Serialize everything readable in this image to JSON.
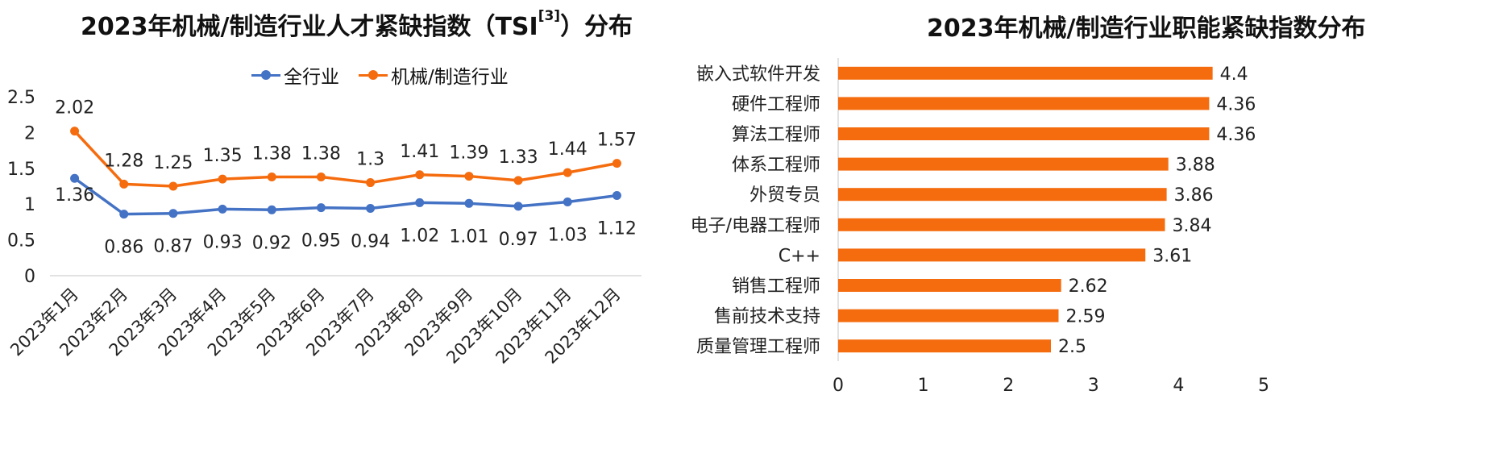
{
  "chart_data": [
    {
      "type": "line",
      "title": "2023年机械/制造行业人才紧缺指数（TSI",
      "title_sup": "[3]",
      "title_end": "）分布",
      "categories": [
        "2023年1月",
        "2023年2月",
        "2023年3月",
        "2023年4月",
        "2023年5月",
        "2023年6月",
        "2023年7月",
        "2023年8月",
        "2023年9月",
        "2023年10月",
        "2023年11月",
        "2023年12月"
      ],
      "y_ticks": [
        "0",
        "0.5",
        "1",
        "1.5",
        "2",
        "2.5"
      ],
      "ylim": [
        0,
        2.5
      ],
      "legend_position": "top",
      "series": [
        {
          "name": "全行业",
          "color": "#4472C4",
          "values": [
            1.36,
            0.86,
            0.87,
            0.93,
            0.92,
            0.95,
            0.94,
            1.02,
            1.01,
            0.97,
            1.03,
            1.12
          ],
          "labels": [
            "1.36",
            "0.86",
            "0.87",
            "0.93",
            "0.92",
            "0.95",
            "0.94",
            "1.02",
            "1.01",
            "0.97",
            "1.03",
            "1.12"
          ]
        },
        {
          "name": "机械/制造行业",
          "color": "#F56C0F",
          "values": [
            2.02,
            1.28,
            1.25,
            1.35,
            1.38,
            1.38,
            1.3,
            1.41,
            1.39,
            1.33,
            1.44,
            1.57
          ],
          "labels": [
            "2.02",
            "1.28",
            "1.25",
            "1.35",
            "1.38",
            "1.38",
            "1.3",
            "1.41",
            "1.39",
            "1.33",
            "1.44",
            "1.57"
          ]
        }
      ]
    },
    {
      "type": "bar",
      "orientation": "horizontal",
      "title": "2023年机械/制造行业职能紧缺指数分布",
      "categories": [
        "嵌入式软件开发",
        "硬件工程师",
        "算法工程师",
        "体系工程师",
        "外贸专员",
        "电子/电器工程师",
        "C++",
        "销售工程师",
        "售前技术支持",
        "质量管理工程师"
      ],
      "values": [
        4.4,
        4.36,
        4.36,
        3.88,
        3.86,
        3.84,
        3.61,
        2.62,
        2.59,
        2.5
      ],
      "labels": [
        "4.4",
        "4.36",
        "4.36",
        "3.88",
        "3.86",
        "3.84",
        "3.61",
        "2.62",
        "2.59",
        "2.5"
      ],
      "x_ticks": [
        "0",
        "1",
        "2",
        "3",
        "4",
        "5"
      ],
      "xlim": [
        0,
        5
      ],
      "color": "#F56C0F"
    }
  ]
}
